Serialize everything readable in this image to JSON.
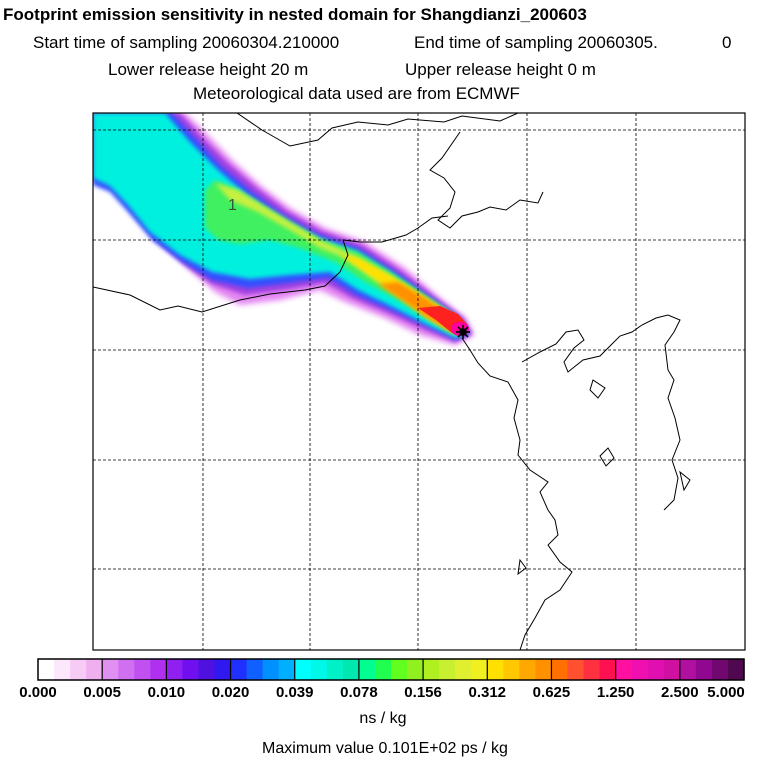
{
  "header": {
    "title": "Footprint emission sensitivity in nested domain for Shangdianzi_200603",
    "start_sampling": "Start time of sampling 20060304.210000",
    "end_sampling": "End time of sampling 20060305.",
    "end_sampling_suffix": "0",
    "lower_release": "Lower release height   20 m",
    "upper_release": "Upper release height    0 m",
    "met_data": "Meteorological data used are from ECMWF"
  },
  "map": {
    "contour_label": "1",
    "plume_colors": {
      "outer_magenta": "#e070f0",
      "purple": "#a040e0",
      "blue": "#3050ff",
      "cyan": "#00f0e0",
      "green": "#40f060",
      "yellow_green": "#c8f040",
      "yellow": "#ffe000",
      "orange": "#ff9000",
      "red": "#ff2020",
      "magenta": "#ff00a0",
      "dark": "#400040"
    },
    "receptor_marker": "star-icon"
  },
  "colorbar": {
    "tick_labels": [
      "0.000",
      "0.005",
      "0.010",
      "0.020",
      "0.039",
      "0.078",
      "0.156",
      "0.312",
      "0.625",
      "1.250",
      "2.500",
      "5.000"
    ],
    "colors": [
      "#ffffff",
      "#fce8fc",
      "#f6ccf6",
      "#f0b0f0",
      "#e090f0",
      "#d070f0",
      "#c050f0",
      "#b030f0",
      "#9020f0",
      "#7010f0",
      "#5010e0",
      "#3018f0",
      "#2030ff",
      "#1060ff",
      "#0090ff",
      "#00b0ff",
      "#00ffff",
      "#00f8e8",
      "#00f0c8",
      "#00e8b0",
      "#00ff90",
      "#20ff50",
      "#60ff20",
      "#90f020",
      "#b0f020",
      "#c8f030",
      "#e0f030",
      "#f0f020",
      "#ffe000",
      "#ffc800",
      "#ffa800",
      "#ff9000",
      "#ff7000",
      "#ff5030",
      "#ff3040",
      "#ff1050",
      "#ff10a0",
      "#f010b0",
      "#e010b0",
      "#d010a0",
      "#b010a0",
      "#900890",
      "#700870",
      "#500850"
    ],
    "unit": "ns / kg",
    "max_value": "Maximum value  0.101E+02 ps / kg"
  }
}
